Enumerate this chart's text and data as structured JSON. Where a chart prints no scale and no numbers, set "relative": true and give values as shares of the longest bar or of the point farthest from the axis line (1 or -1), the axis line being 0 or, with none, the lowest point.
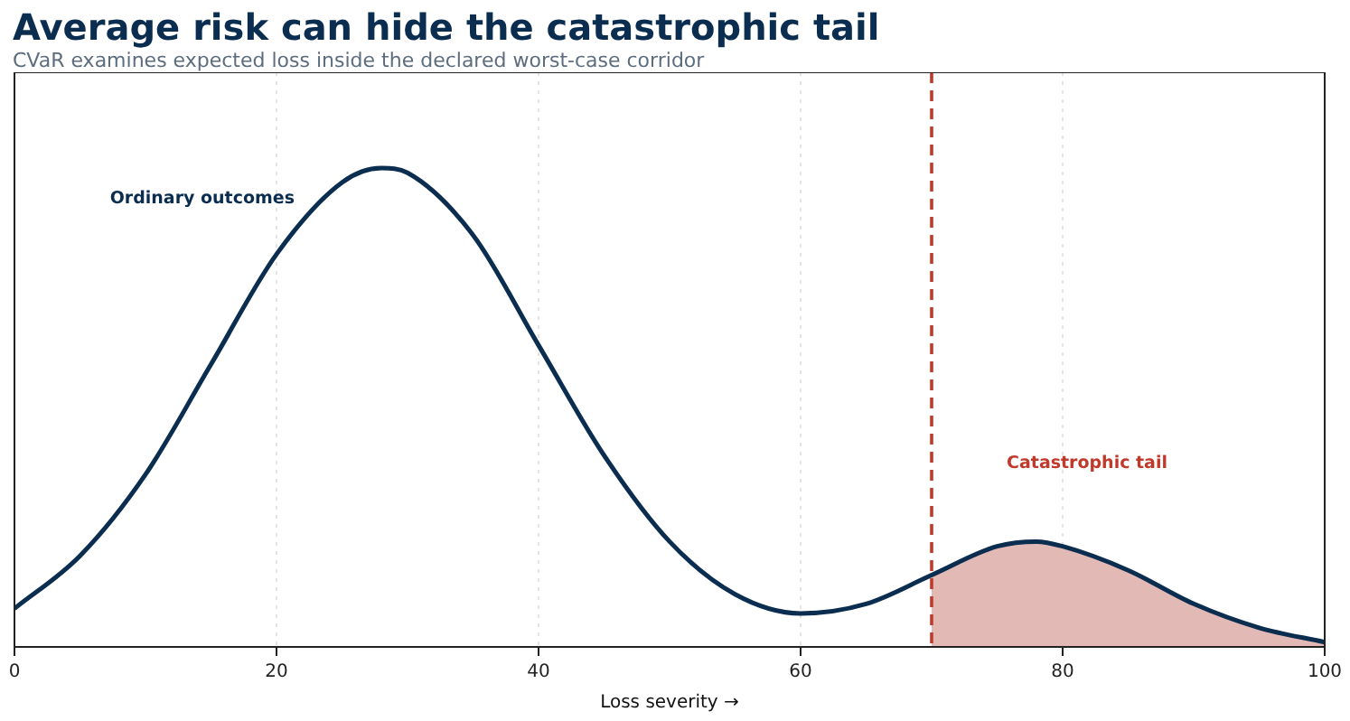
{
  "chart_data": {
    "type": "line",
    "title": "Average risk can hide the catastrophic tail",
    "subtitle": "CVaR examines expected loss inside the declared worst-case corridor",
    "xlabel": "Loss severity →",
    "relative": true,
    "xlim": [
      0,
      100
    ],
    "xticks": [
      0,
      20,
      40,
      60,
      80,
      100
    ],
    "grid": "x",
    "legend": false,
    "marker": "none",
    "series": [
      {
        "type": "line",
        "color": "#0b2d50",
        "x": [
          0,
          5,
          10,
          15,
          20,
          25,
          28,
          30,
          35,
          40,
          45,
          50,
          55,
          60,
          65,
          70,
          75,
          78,
          80,
          85,
          90,
          95,
          100
        ],
        "values": [
          0.08,
          0.19,
          0.36,
          0.59,
          0.82,
          0.97,
          1,
          0.99,
          0.86,
          0.63,
          0.4,
          0.22,
          0.11,
          0.07,
          0.09,
          0.15,
          0.21,
          0.22,
          0.21,
          0.16,
          0.09,
          0.04,
          0.01
        ]
      },
      {
        "type": "area",
        "color": "#e3b9b6",
        "x": [
          70,
          75,
          78,
          80,
          85,
          90,
          95,
          100
        ],
        "values": [
          0.15,
          0.21,
          0.22,
          0.21,
          0.16,
          0.09,
          0.04,
          0.01
        ]
      }
    ],
    "ref_lines": [
      {
        "axis": "x",
        "value": 70,
        "color": "#c0392b",
        "line_style": "dashed"
      }
    ],
    "annotations": [
      "Ordinary outcomes",
      "Catastrophic tail"
    ]
  }
}
